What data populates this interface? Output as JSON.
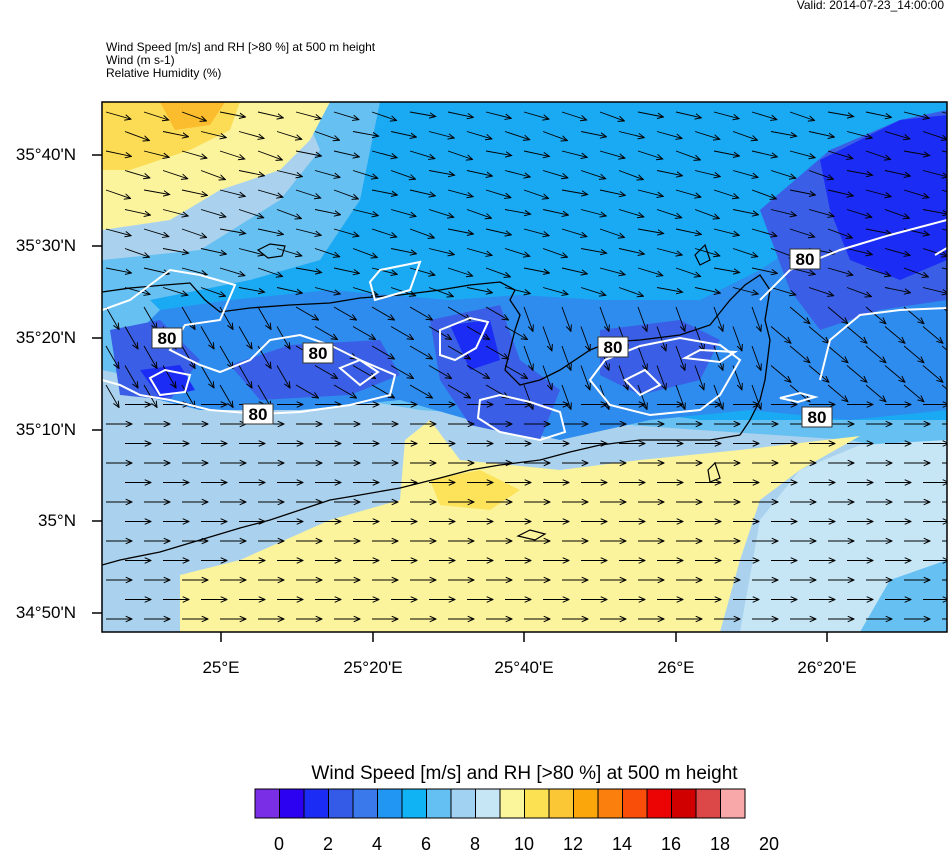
{
  "valid_time": "Valid: 2014-07-23_14:00:00",
  "header": {
    "line1": "Wind Speed [m/s] and RH [>80 %] at 500 m height",
    "line2": "Wind   (m s-1)",
    "line3": "Relative Humidity   (%)"
  },
  "map": {
    "lat_labels": [
      "35°40'N",
      "35°30'N",
      "35°20'N",
      "35°10'N",
      "35°N",
      "34°50'N"
    ],
    "lon_labels": [
      "25°E",
      "25°20'E",
      "25°40'E",
      "26°E",
      "26°20'E"
    ],
    "contour_level_label": "80",
    "background_color": "#aad2ee"
  },
  "colorbar": {
    "title": "Wind Speed [m/s] and RH [>80 %] at 500 m height",
    "tick_labels": [
      "0",
      "2",
      "4",
      "6",
      "8",
      "10",
      "12",
      "14",
      "16",
      "18",
      "20"
    ],
    "colors": [
      "#7a2ee6",
      "#2c00f0",
      "#1b2cf5",
      "#345be8",
      "#3a79eb",
      "#2196f3",
      "#10b4f4",
      "#64c0f2",
      "#a2d2f2",
      "#c6e6f6",
      "#fbf59c",
      "#fce152",
      "#fbc734",
      "#fba70c",
      "#fb7f0c",
      "#f94e0a",
      "#ec0303",
      "#d10000",
      "#dc4747",
      "#f8a8a8"
    ]
  }
}
